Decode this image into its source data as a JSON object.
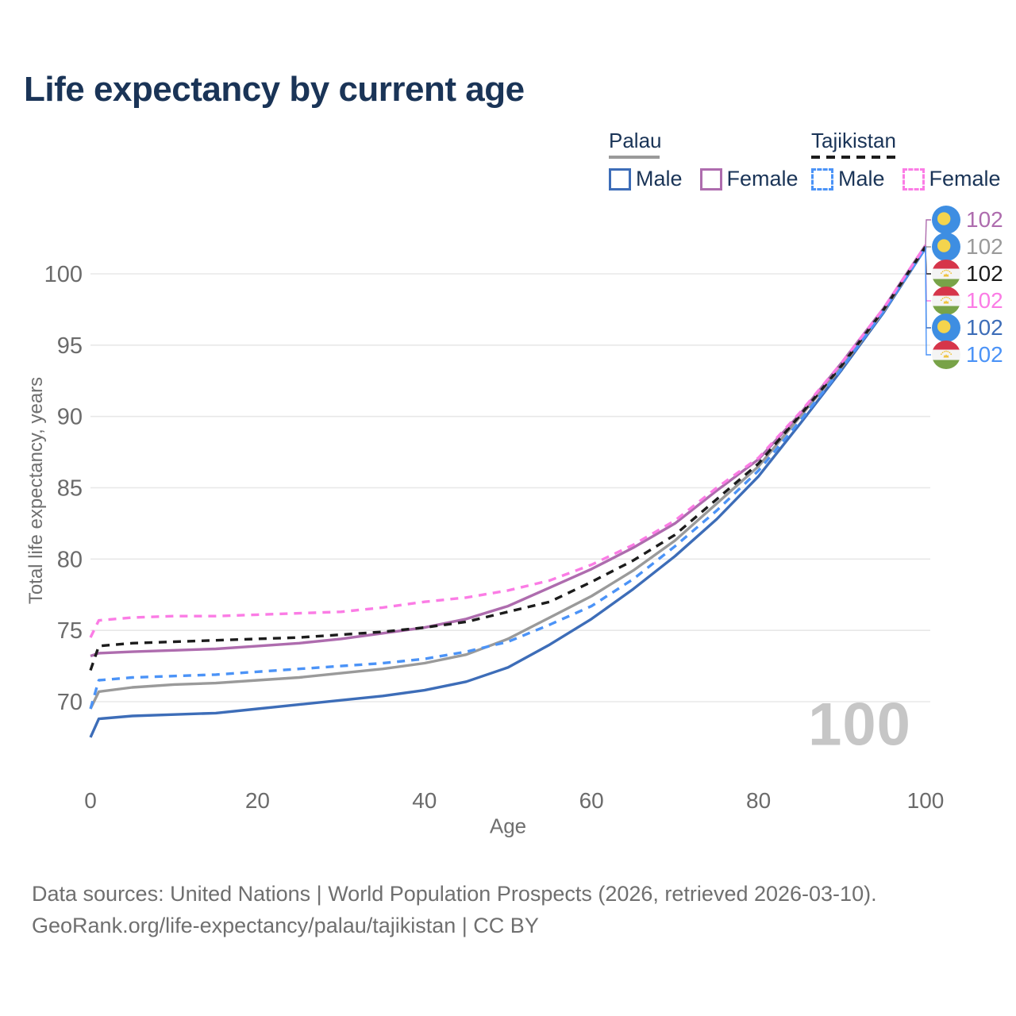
{
  "title": "Life expectancy by current age",
  "colors": {
    "title_navy": "#1a3457",
    "axis_text": "#6f6f6f",
    "tick_text": "#6b6b6b",
    "gridline": "#e8e8e8",
    "watermark_gray": "#c6c6c6",
    "palau_male": "#3d6db8",
    "palau_female": "#ae6cae",
    "palau_all": "#9a9a9a",
    "tajikistan_male": "#4b93f7",
    "tajikistan_female": "#fb7ce5",
    "tajikistan_all": "#1c1c1c",
    "flag_palau_blue": "#3e8ee2",
    "flag_palau_sun": "#f4d44d",
    "flag_tajik_red": "#d6354a",
    "flag_tajik_white": "#f4f4f4",
    "flag_tajik_green": "#78a348",
    "flag_tajik_crown": "#eec33e"
  },
  "legend": {
    "groups": [
      {
        "label": "Palau",
        "underline_color": "#9a9a9a",
        "underline_style": "solid",
        "items": [
          {
            "label": "Male",
            "color": "#3d6db8",
            "dashed": false
          },
          {
            "label": "Female",
            "color": "#ae6cae",
            "dashed": false
          }
        ]
      },
      {
        "label": "Tajikistan",
        "underline_color": "#1c1c1c",
        "underline_style": "dashed",
        "items": [
          {
            "label": "Male",
            "color": "#4b93f7",
            "dashed": true
          },
          {
            "label": "Female",
            "color": "#fb7ce5",
            "dashed": true
          }
        ]
      }
    ]
  },
  "watermark": "100",
  "footer": {
    "line1": "Data sources: United Nations | World Population Prospects (2026, retrieved 2026-03-10).",
    "line2": "GeoRank.org/life-expectancy/palau/tajikistan | CC BY"
  },
  "chart_data": {
    "type": "line",
    "title": "Life expectancy by current age",
    "xlabel": "Age",
    "ylabel": "Total life expectancy, years",
    "xlim": [
      0,
      100
    ],
    "ylim": [
      66,
      103
    ],
    "x_ticks": [
      0,
      20,
      40,
      60,
      80,
      100
    ],
    "y_ticks": [
      70,
      75,
      80,
      85,
      90,
      95,
      100
    ],
    "grid": "horizontal-only",
    "legend_position": "top-right",
    "x": [
      0,
      1,
      5,
      10,
      15,
      20,
      25,
      30,
      35,
      40,
      45,
      50,
      55,
      60,
      65,
      70,
      75,
      80,
      85,
      90,
      95,
      100
    ],
    "series": [
      {
        "name": "Palau Male",
        "country": "Palau",
        "sex": "Male",
        "color": "#3d6db8",
        "dash": "solid",
        "values": [
          67.5,
          68.8,
          69.0,
          69.1,
          69.2,
          69.5,
          69.8,
          70.1,
          70.4,
          70.8,
          71.4,
          72.4,
          74.0,
          75.8,
          77.9,
          80.2,
          82.8,
          85.8,
          89.5,
          93.3,
          97.3,
          101.8
        ]
      },
      {
        "name": "Palau",
        "country": "Palau",
        "sex": "Both",
        "color": "#9a9a9a",
        "dash": "solid",
        "values": [
          69.5,
          70.7,
          71.0,
          71.2,
          71.3,
          71.5,
          71.7,
          72.0,
          72.3,
          72.7,
          73.3,
          74.4,
          75.9,
          77.4,
          79.2,
          81.3,
          83.9,
          86.5,
          90.0,
          93.5,
          97.4,
          101.9
        ]
      },
      {
        "name": "Palau Female",
        "country": "Palau",
        "sex": "Female",
        "color": "#ae6cae",
        "dash": "solid",
        "values": [
          73.2,
          73.4,
          73.5,
          73.6,
          73.7,
          73.9,
          74.1,
          74.4,
          74.8,
          75.2,
          75.8,
          76.7,
          78.0,
          79.3,
          80.8,
          82.5,
          84.8,
          87.0,
          90.2,
          93.8,
          97.6,
          102.0
        ]
      },
      {
        "name": "Tajikistan",
        "country": "Tajikistan",
        "sex": "Both",
        "color": "#1c1c1c",
        "dash": "dashed",
        "values": [
          72.2,
          73.9,
          74.1,
          74.2,
          74.3,
          74.4,
          74.5,
          74.7,
          74.9,
          75.2,
          75.6,
          76.3,
          77.0,
          78.4,
          79.9,
          81.7,
          84.2,
          86.7,
          90.1,
          93.6,
          97.5,
          101.9
        ]
      },
      {
        "name": "Tajikistan Male",
        "country": "Tajikistan",
        "sex": "Male",
        "color": "#4b93f7",
        "dash": "dashed",
        "values": [
          69.5,
          71.5,
          71.7,
          71.8,
          71.9,
          72.1,
          72.3,
          72.5,
          72.7,
          73.0,
          73.5,
          74.2,
          75.4,
          76.7,
          78.6,
          80.9,
          83.4,
          86.2,
          89.7,
          93.4,
          97.4,
          101.8
        ]
      },
      {
        "name": "Tajikistan Female",
        "country": "Tajikistan",
        "sex": "Female",
        "color": "#fb7ce5",
        "dash": "dashed",
        "values": [
          74.5,
          75.7,
          75.9,
          76.0,
          76.0,
          76.1,
          76.2,
          76.3,
          76.6,
          77.0,
          77.3,
          77.8,
          78.5,
          79.6,
          81.0,
          82.7,
          85.0,
          87.1,
          90.3,
          93.8,
          97.6,
          102.0
        ]
      }
    ],
    "end_labels": [
      {
        "series": "Palau Female",
        "flag": "palau",
        "value": "102",
        "color": "#ae6cae"
      },
      {
        "series": "Palau",
        "flag": "palau",
        "value": "102",
        "color": "#9a9a9a"
      },
      {
        "series": "Tajikistan",
        "flag": "tajikistan",
        "value": "102",
        "color": "#1c1c1c"
      },
      {
        "series": "Tajikistan Female",
        "flag": "tajikistan",
        "value": "102",
        "color": "#fb7ce5"
      },
      {
        "series": "Palau Male",
        "flag": "palau",
        "value": "102",
        "color": "#3d6db8"
      },
      {
        "series": "Tajikistan Male",
        "flag": "tajikistan",
        "value": "102",
        "color": "#4b93f7"
      }
    ]
  }
}
